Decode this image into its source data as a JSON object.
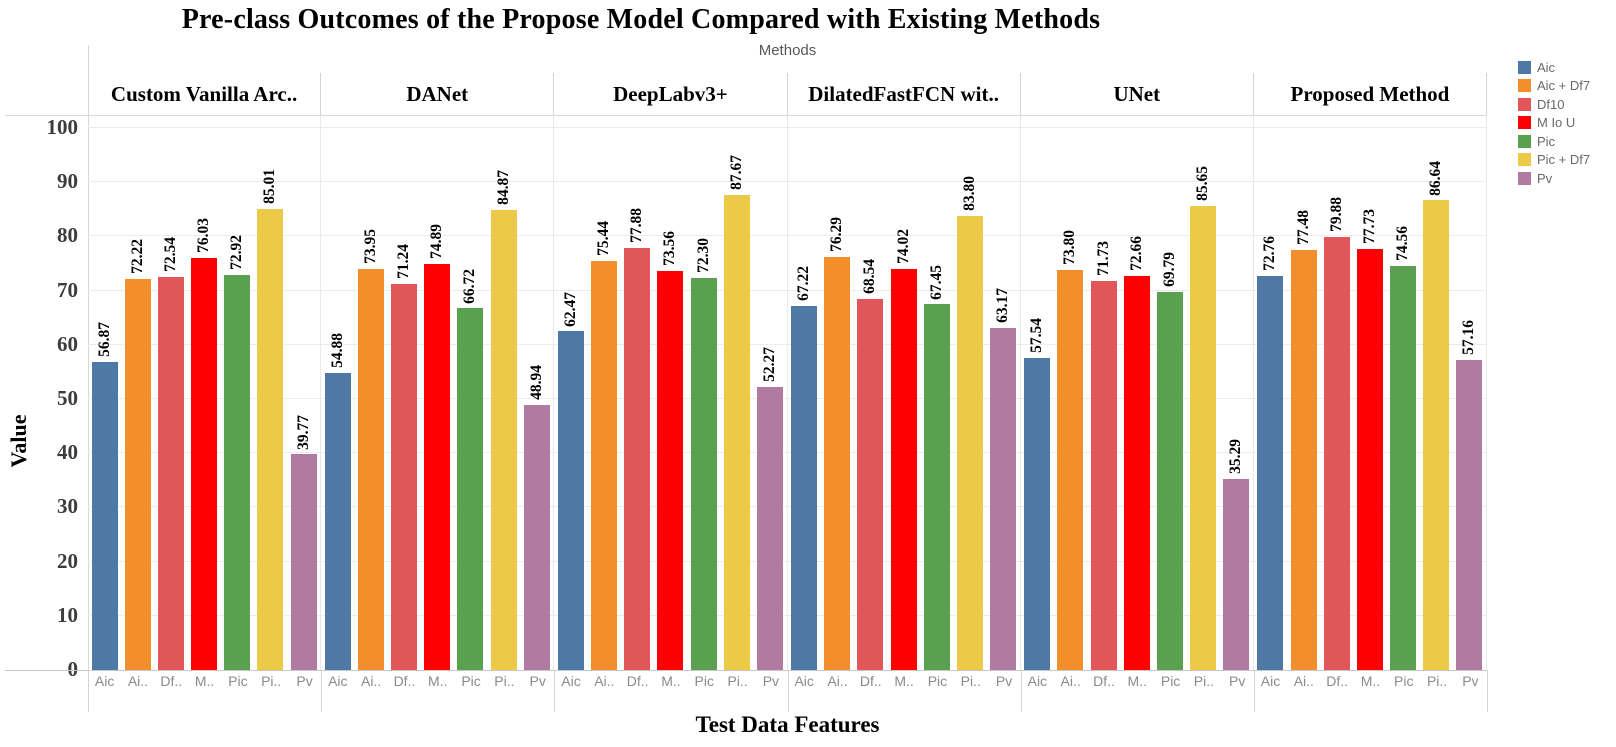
{
  "title": "Pre-class Outcomes of the Propose Model Compared with Existing Methods",
  "chart_data": {
    "type": "bar",
    "title": "Pre-class Outcomes of the Propose Model Compared with Existing Methods",
    "column_axis_title": "Methods",
    "xlabel": "Test Data Features",
    "ylabel": "Value",
    "ylim": [
      0,
      102.4
    ],
    "yticks": [
      0,
      10,
      20,
      30,
      40,
      50,
      60,
      70,
      80,
      90,
      100
    ],
    "grid": true,
    "legend_position": "right",
    "categories": [
      "Custom Vanilla Arc..",
      "DANet",
      "DeepLabv3+",
      "DilatedFastFCN wit..",
      "UNet",
      "Proposed Method"
    ],
    "bar_axis_tick_labels": [
      "Aic",
      "Ai..",
      "Df..",
      "M..",
      "Pic",
      "Pi..",
      "Pv"
    ],
    "series": [
      {
        "name": "Aic",
        "color": "#4e79a7",
        "values": [
          "56.87",
          "54.88",
          "62.47",
          "67.22",
          "57.54",
          "72.76"
        ]
      },
      {
        "name": "Aic + Df7",
        "color": "#f28e2b",
        "values": [
          "72.22",
          "73.95",
          "75.44",
          "76.29",
          "73.80",
          "77.48"
        ]
      },
      {
        "name": "Df10",
        "color": "#e15759",
        "values": [
          "72.54",
          "71.24",
          "77.88",
          "68.54",
          "71.73",
          "79.88"
        ]
      },
      {
        "name": "M Io U",
        "color": "#fe0000",
        "values": [
          "76.03",
          "74.89",
          "73.56",
          "74.02",
          "72.66",
          "77.73"
        ]
      },
      {
        "name": "Pic",
        "color": "#59a14f",
        "values": [
          "72.92",
          "66.72",
          "72.30",
          "67.45",
          "69.79",
          "74.56"
        ]
      },
      {
        "name": "Pic + Df7",
        "color": "#edc948",
        "values": [
          "85.01",
          "84.87",
          "87.67",
          "83.80",
          "85.65",
          "86.64"
        ]
      },
      {
        "name": "Pv",
        "color": "#b07aa1",
        "values": [
          "39.77",
          "48.94",
          "52.27",
          "63.17",
          "35.29",
          "57.16"
        ]
      }
    ]
  }
}
